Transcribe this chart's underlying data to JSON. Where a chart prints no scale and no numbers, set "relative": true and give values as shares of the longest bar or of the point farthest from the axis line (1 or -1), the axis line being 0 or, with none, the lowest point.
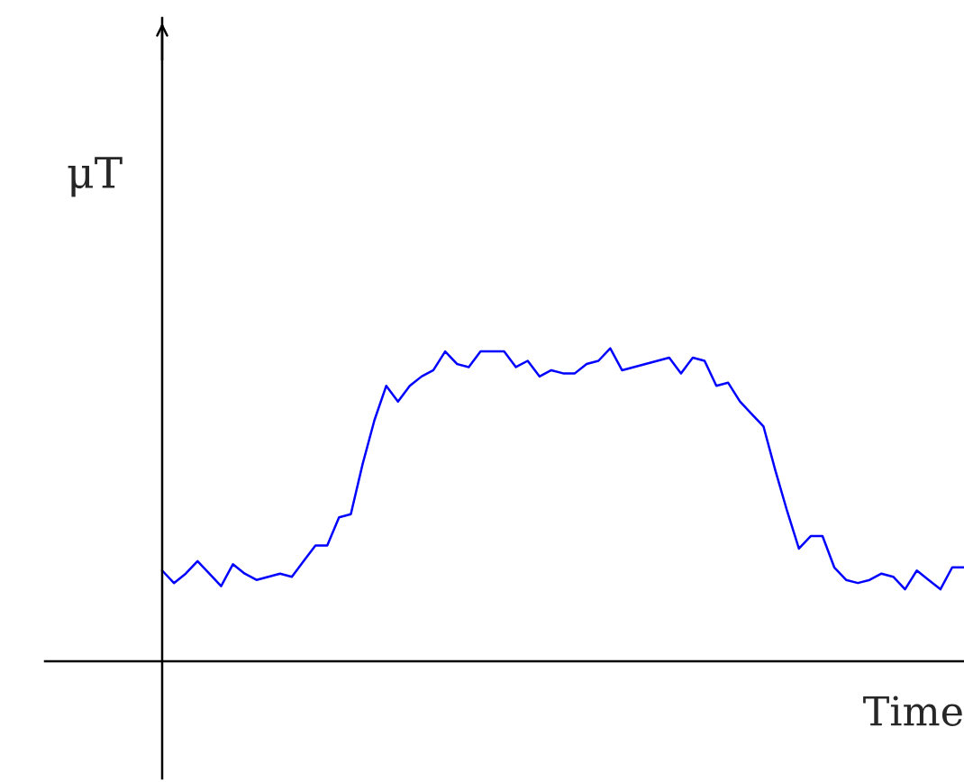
{
  "chart_data": {
    "type": "line",
    "relative": true,
    "ylabel": "μT",
    "xlabel": "Time",
    "categories": [
      null,
      null,
      null,
      null,
      null,
      null,
      null,
      null,
      null,
      null,
      null,
      null,
      null,
      null,
      null,
      null,
      null,
      null,
      null,
      null,
      null,
      null,
      null,
      null,
      null,
      null,
      null,
      null,
      null,
      null,
      null,
      null,
      null,
      null,
      null,
      null,
      null,
      null,
      null,
      null,
      null,
      null,
      null,
      null,
      null,
      null,
      null,
      null,
      null,
      null,
      null,
      null,
      null,
      null,
      null,
      null,
      null,
      null,
      null,
      null,
      null,
      null,
      null,
      null,
      null,
      null,
      null,
      null,
      null
    ],
    "series": [
      {
        "color": "#0000ff",
        "values": [
          0.29,
          0.25,
          0.28,
          0.32,
          0.28,
          0.24,
          0.31,
          0.28,
          0.26,
          0.27,
          0.28,
          0.27,
          0.32,
          0.37,
          0.37,
          0.46,
          0.47,
          0.63,
          0.77,
          0.88,
          0.83,
          0.88,
          0.91,
          0.93,
          0.99,
          0.95,
          0.94,
          0.99,
          0.99,
          0.99,
          0.94,
          0.96,
          0.91,
          0.93,
          0.92,
          0.92,
          0.95,
          0.96,
          1,
          0.93,
          0.94,
          0.95,
          0.96,
          0.97,
          0.92,
          0.97,
          0.96,
          0.88,
          0.89,
          0.83,
          0.79,
          0.75,
          0.61,
          0.48,
          0.36,
          0.4,
          0.4,
          0.3,
          0.26,
          0.25,
          0.26,
          0.28,
          0.27,
          0.23,
          0.29,
          0.26,
          0.23,
          0.3,
          0.3
        ]
      }
    ]
  }
}
